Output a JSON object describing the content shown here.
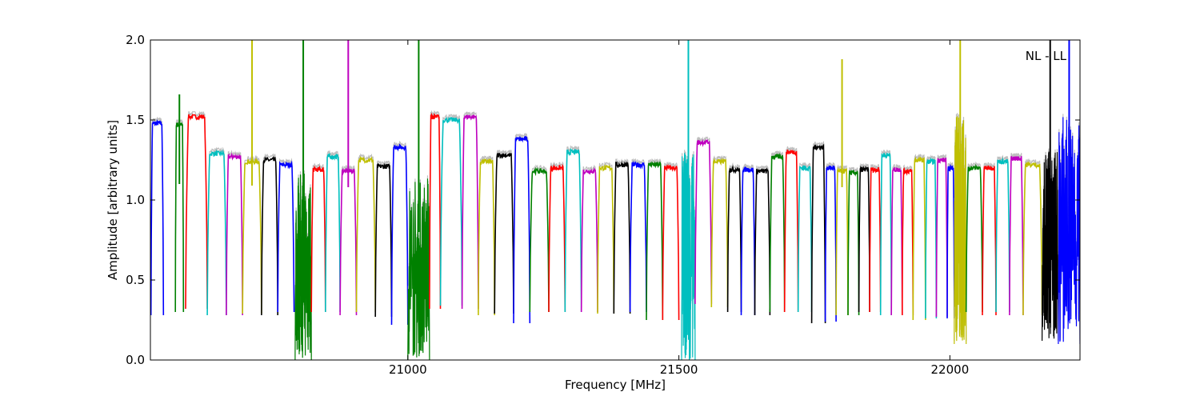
{
  "chart_data": {
    "type": "line",
    "title": "",
    "annotation": "NL - LL",
    "xlabel": "Frequency [MHz]",
    "ylabel": "Amplitude [arbitrary units]",
    "xlim": [
      20525,
      22240
    ],
    "ylim": [
      0.0,
      2.0
    ],
    "xticks": [
      21000,
      21500,
      22000
    ],
    "xtick_labels": [
      "21000",
      "21500",
      "22000"
    ],
    "yticks": [
      0.0,
      0.5,
      1.0,
      1.5,
      2.0
    ],
    "ytick_labels": [
      "0.0",
      "0.5",
      "1.0",
      "1.5",
      "2.0"
    ],
    "grid": false,
    "reference_color": "#bfbfbf",
    "palette": [
      "#0000ff",
      "#008000",
      "#ff0000",
      "#00bfbf",
      "#bf00bf",
      "#bfbf00",
      "#000000"
    ],
    "channels": [
      {
        "x0": 20526,
        "x1": 20549,
        "peak": 1.48,
        "low": 0.28,
        "color_index": 0
      },
      {
        "x0": 20571,
        "x1": 20586,
        "peak": 1.47,
        "low": 0.3,
        "color_index": 1,
        "spike": 1.66
      },
      {
        "x0": 20590,
        "x1": 20630,
        "peak": 1.52,
        "low": 0.32,
        "color_index": 2
      },
      {
        "x0": 20630,
        "x1": 20665,
        "peak": 1.29,
        "low": 0.28,
        "color_index": 3
      },
      {
        "x0": 20665,
        "x1": 20695,
        "peak": 1.27,
        "low": 0.28,
        "color_index": 4
      },
      {
        "x0": 20695,
        "x1": 20730,
        "peak": 1.24,
        "low": 0.29,
        "color_index": 5,
        "spike": 2.0
      },
      {
        "x0": 20730,
        "x1": 20760,
        "peak": 1.25,
        "low": 0.28,
        "color_index": 6
      },
      {
        "x0": 20760,
        "x1": 20790,
        "peak": 1.22,
        "low": 0.3,
        "color_index": 0
      },
      {
        "x0": 20792,
        "x1": 20822,
        "peak": 1.2,
        "low": 0.0,
        "color_index": 1,
        "noisy": true,
        "spike": 2.0
      },
      {
        "x0": 20822,
        "x1": 20848,
        "peak": 1.19,
        "low": 0.3,
        "color_index": 2
      },
      {
        "x0": 20848,
        "x1": 20875,
        "peak": 1.27,
        "low": 0.3,
        "color_index": 3
      },
      {
        "x0": 20875,
        "x1": 20905,
        "peak": 1.18,
        "low": 0.28,
        "color_index": 4,
        "spike": 2.0
      },
      {
        "x0": 20905,
        "x1": 20940,
        "peak": 1.25,
        "low": 0.3,
        "color_index": 5
      },
      {
        "x0": 20940,
        "x1": 20970,
        "peak": 1.21,
        "low": 0.27,
        "color_index": 6
      },
      {
        "x0": 20970,
        "x1": 21000,
        "peak": 1.33,
        "low": 0.22,
        "color_index": 0
      },
      {
        "x0": 21000,
        "x1": 21040,
        "peak": 1.15,
        "low": 0.0,
        "color_index": 1,
        "noisy": true,
        "spike": 2.0
      },
      {
        "x0": 21040,
        "x1": 21060,
        "peak": 1.52,
        "low": 0.32,
        "color_index": 2
      },
      {
        "x0": 21060,
        "x1": 21100,
        "peak": 1.5,
        "low": 0.34,
        "color_index": 3
      },
      {
        "x0": 21100,
        "x1": 21130,
        "peak": 1.52,
        "low": 0.32,
        "color_index": 4
      },
      {
        "x0": 21130,
        "x1": 21160,
        "peak": 1.24,
        "low": 0.28,
        "color_index": 5
      },
      {
        "x0": 21160,
        "x1": 21195,
        "peak": 1.28,
        "low": 0.29,
        "color_index": 6
      },
      {
        "x0": 21195,
        "x1": 21225,
        "peak": 1.38,
        "low": 0.23,
        "color_index": 0
      },
      {
        "x0": 21225,
        "x1": 21260,
        "peak": 1.18,
        "low": 0.3,
        "color_index": 1
      },
      {
        "x0": 21260,
        "x1": 21290,
        "peak": 1.2,
        "low": 0.3,
        "color_index": 2
      },
      {
        "x0": 21290,
        "x1": 21320,
        "peak": 1.3,
        "low": 0.3,
        "color_index": 3
      },
      {
        "x0": 21320,
        "x1": 21350,
        "peak": 1.18,
        "low": 0.3,
        "color_index": 4
      },
      {
        "x0": 21350,
        "x1": 21380,
        "peak": 1.2,
        "low": 0.29,
        "color_index": 5
      },
      {
        "x0": 21380,
        "x1": 21410,
        "peak": 1.22,
        "low": 0.29,
        "color_index": 6
      },
      {
        "x0": 21410,
        "x1": 21440,
        "peak": 1.22,
        "low": 0.3,
        "color_index": 0
      },
      {
        "x0": 21440,
        "x1": 21470,
        "peak": 1.22,
        "low": 0.25,
        "color_index": 1
      },
      {
        "x0": 21470,
        "x1": 21500,
        "peak": 1.2,
        "low": 0.25,
        "color_index": 2
      },
      {
        "x0": 21505,
        "x1": 21530,
        "peak": 1.3,
        "low": 0.0,
        "color_index": 3,
        "noisy": true,
        "spike": 2.0
      },
      {
        "x0": 21530,
        "x1": 21560,
        "peak": 1.36,
        "low": 0.35,
        "color_index": 4
      },
      {
        "x0": 21560,
        "x1": 21590,
        "peak": 1.24,
        "low": 0.33,
        "color_index": 5
      },
      {
        "x0": 21590,
        "x1": 21615,
        "peak": 1.19,
        "low": 0.3,
        "color_index": 6
      },
      {
        "x0": 21615,
        "x1": 21640,
        "peak": 1.19,
        "low": 0.28,
        "color_index": 0
      },
      {
        "x0": 21640,
        "x1": 21668,
        "peak": 1.18,
        "low": 0.28,
        "color_index": 6
      },
      {
        "x0": 21668,
        "x1": 21695,
        "peak": 1.27,
        "low": 0.3,
        "color_index": 1
      },
      {
        "x0": 21695,
        "x1": 21720,
        "peak": 1.3,
        "low": 0.3,
        "color_index": 2
      },
      {
        "x0": 21720,
        "x1": 21745,
        "peak": 1.2,
        "low": 0.3,
        "color_index": 3
      },
      {
        "x0": 21745,
        "x1": 21770,
        "peak": 1.33,
        "low": 0.23,
        "color_index": 6
      },
      {
        "x0": 21770,
        "x1": 21790,
        "peak": 1.2,
        "low": 0.24,
        "color_index": 0
      },
      {
        "x0": 21790,
        "x1": 21812,
        "peak": 1.18,
        "low": 0.28,
        "color_index": 5,
        "spike": 1.88
      },
      {
        "x0": 21812,
        "x1": 21832,
        "peak": 1.17,
        "low": 0.28,
        "color_index": 1
      },
      {
        "x0": 21832,
        "x1": 21852,
        "peak": 1.19,
        "low": 0.3,
        "color_index": 6
      },
      {
        "x0": 21852,
        "x1": 21872,
        "peak": 1.19,
        "low": 0.3,
        "color_index": 2
      },
      {
        "x0": 21872,
        "x1": 21892,
        "peak": 1.28,
        "low": 0.28,
        "color_index": 3
      },
      {
        "x0": 21892,
        "x1": 21912,
        "peak": 1.19,
        "low": 0.28,
        "color_index": 4
      },
      {
        "x0": 21912,
        "x1": 21932,
        "peak": 1.18,
        "low": 0.28,
        "color_index": 2
      },
      {
        "x0": 21932,
        "x1": 21955,
        "peak": 1.25,
        "low": 0.25,
        "color_index": 5
      },
      {
        "x0": 21955,
        "x1": 21975,
        "peak": 1.24,
        "low": 0.26,
        "color_index": 3
      },
      {
        "x0": 21975,
        "x1": 21995,
        "peak": 1.25,
        "low": 0.27,
        "color_index": 4
      },
      {
        "x0": 21995,
        "x1": 22008,
        "peak": 1.2,
        "low": 0.26,
        "color_index": 0
      },
      {
        "x0": 22008,
        "x1": 22030,
        "peak": 1.53,
        "low": 0.1,
        "color_index": 5,
        "noisy": true,
        "spike": 2.0
      },
      {
        "x0": 22030,
        "x1": 22060,
        "peak": 1.2,
        "low": 0.3,
        "color_index": 1
      },
      {
        "x0": 22060,
        "x1": 22085,
        "peak": 1.2,
        "low": 0.28,
        "color_index": 2
      },
      {
        "x0": 22085,
        "x1": 22110,
        "peak": 1.24,
        "low": 0.3,
        "color_index": 3
      },
      {
        "x0": 22110,
        "x1": 22135,
        "peak": 1.26,
        "low": 0.28,
        "color_index": 4
      },
      {
        "x0": 22135,
        "x1": 22170,
        "peak": 1.22,
        "low": 0.28,
        "color_index": 5
      },
      {
        "x0": 22170,
        "x1": 22200,
        "peak": 1.32,
        "low": 0.12,
        "color_index": 6,
        "noisy": true,
        "spike": 2.0
      },
      {
        "x0": 22200,
        "x1": 22240,
        "peak": 1.52,
        "low": 0.1,
        "color_index": 0,
        "noisy": true,
        "spike": 2.0
      }
    ]
  }
}
